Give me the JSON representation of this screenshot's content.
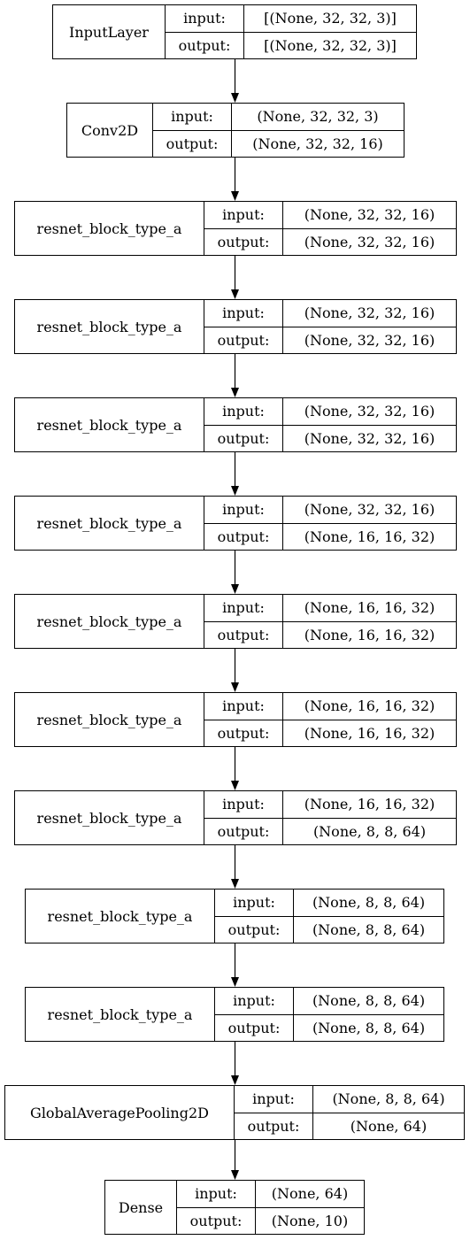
{
  "layers": [
    {
      "name": "InputLayer",
      "input_label": "input:",
      "output_label": "output:",
      "input": "[(None, 32, 32, 3)]",
      "output": "[(None, 32, 32, 3)]"
    },
    {
      "name": "Conv2D",
      "input_label": "input:",
      "output_label": "output:",
      "input": "(None, 32, 32, 3)",
      "output": "(None, 32, 32, 16)"
    },
    {
      "name": "resnet_block_type_a",
      "input_label": "input:",
      "output_label": "output:",
      "input": "(None, 32, 32, 16)",
      "output": "(None, 32, 32, 16)"
    },
    {
      "name": "resnet_block_type_a",
      "input_label": "input:",
      "output_label": "output:",
      "input": "(None, 32, 32, 16)",
      "output": "(None, 32, 32, 16)"
    },
    {
      "name": "resnet_block_type_a",
      "input_label": "input:",
      "output_label": "output:",
      "input": "(None, 32, 32, 16)",
      "output": "(None, 32, 32, 16)"
    },
    {
      "name": "resnet_block_type_a",
      "input_label": "input:",
      "output_label": "output:",
      "input": "(None, 32, 32, 16)",
      "output": "(None, 16, 16, 32)"
    },
    {
      "name": "resnet_block_type_a",
      "input_label": "input:",
      "output_label": "output:",
      "input": "(None, 16, 16, 32)",
      "output": "(None, 16, 16, 32)"
    },
    {
      "name": "resnet_block_type_a",
      "input_label": "input:",
      "output_label": "output:",
      "input": "(None, 16, 16, 32)",
      "output": "(None, 16, 16, 32)"
    },
    {
      "name": "resnet_block_type_a",
      "input_label": "input:",
      "output_label": "output:",
      "input": "(None, 16, 16, 32)",
      "output": "(None, 8, 8, 64)"
    },
    {
      "name": "resnet_block_type_a",
      "input_label": "input:",
      "output_label": "output:",
      "input": "(None, 8, 8, 64)",
      "output": "(None, 8, 8, 64)"
    },
    {
      "name": "resnet_block_type_a",
      "input_label": "input:",
      "output_label": "output:",
      "input": "(None, 8, 8, 64)",
      "output": "(None, 8, 8, 64)"
    },
    {
      "name": "GlobalAveragePooling2D",
      "input_label": "input:",
      "output_label": "output:",
      "input": "(None, 8, 8, 64)",
      "output": "(None, 64)"
    },
    {
      "name": "Dense",
      "input_label": "input:",
      "output_label": "output:",
      "input": "(None, 64)",
      "output": "(None, 10)"
    }
  ]
}
